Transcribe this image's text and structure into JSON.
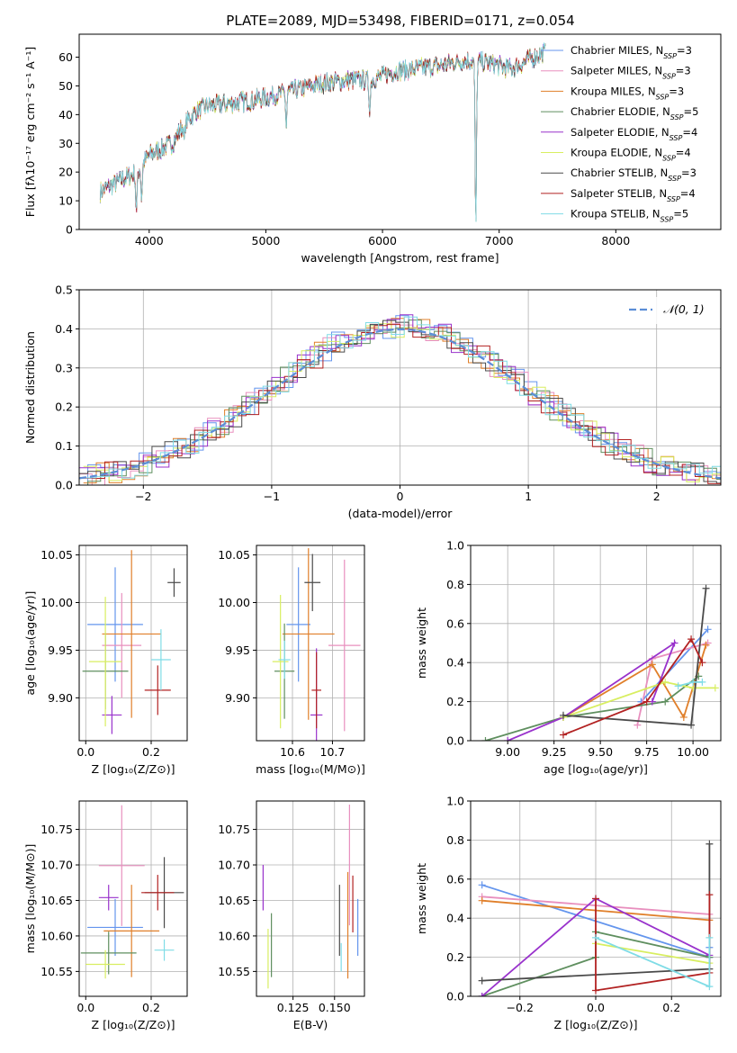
{
  "figure_title": "PLATE=2089, MJD=53498, FIBERID=0171, z=0.054",
  "models": [
    {
      "name": "Chabrier MILES",
      "nssp": "3",
      "color": "#6495ED"
    },
    {
      "name": "Salpeter MILES",
      "nssp": "3",
      "color": "#E88FBE"
    },
    {
      "name": "Kroupa MILES",
      "nssp": "3",
      "color": "#E07F2A"
    },
    {
      "name": "Chabrier ELODIE",
      "nssp": "5",
      "color": "#5F8F5F"
    },
    {
      "name": "Salpeter ELODIE",
      "nssp": "4",
      "color": "#9932CC"
    },
    {
      "name": "Kroupa ELODIE",
      "nssp": "4",
      "color": "#D8EE60"
    },
    {
      "name": "Chabrier STELIB",
      "nssp": "3",
      "color": "#4A4A4A"
    },
    {
      "name": "Salpeter STELIB",
      "nssp": "4",
      "color": "#B22222"
    },
    {
      "name": "Kroupa STELIB",
      "nssp": "5",
      "color": "#7FDCE6"
    }
  ],
  "chart_data": [
    {
      "type": "line",
      "id": "spectrum",
      "xlabel": "wavelength [Angstrom, rest frame]",
      "ylabel": "Flux [fλ10⁻¹⁷ erg cm⁻² s⁻¹ A⁻¹]",
      "xlim": [
        3400,
        8900
      ],
      "ylim": [
        0,
        68
      ],
      "xticks": [
        4000,
        5000,
        6000,
        7000,
        8000
      ],
      "yticks": [
        0,
        10,
        20,
        30,
        40,
        50,
        60
      ],
      "grid": false,
      "legend": "right",
      "continuum": {
        "x": [
          3580,
          3700,
          3800,
          3900,
          4000,
          4100,
          4200,
          4300,
          4400,
          4500,
          4700,
          4900,
          5100,
          5300,
          5500,
          5700,
          5900,
          6100,
          6300,
          6500,
          6600,
          6700,
          6900,
          7100,
          7200,
          7300,
          7400
        ],
        "y": [
          13,
          16,
          18,
          20,
          26,
          28,
          30,
          37,
          41,
          43,
          44,
          45,
          47,
          49,
          51,
          52,
          52,
          55,
          56,
          57,
          58,
          59,
          58,
          56,
          58,
          60,
          62
        ]
      },
      "dips": [
        {
          "x": 3890,
          "y": 6
        },
        {
          "x": 3935,
          "y": 10
        },
        {
          "x": 4300,
          "y": 32
        },
        {
          "x": 5175,
          "y": 36
        },
        {
          "x": 5890,
          "y": 40
        },
        {
          "x": 6800,
          "y": 0
        }
      ]
    },
    {
      "type": "histogram",
      "id": "residuals",
      "xlabel": "(data-model)/error",
      "ylabel": "Normed distribution",
      "xlim": [
        -2.5,
        2.5
      ],
      "ylim": [
        0,
        0.5
      ],
      "xticks": [
        -2,
        -1,
        0,
        1,
        2
      ],
      "yticks": [
        0,
        0.1,
        0.2,
        0.3,
        0.4,
        0.5
      ],
      "grid": true,
      "legend": "top-right",
      "reference_curve": "𝒩(0, 1)",
      "bin_width": 0.1
    },
    {
      "type": "errorbar",
      "id": "z-vs-age",
      "xlabel": "Z [log₁₀(Z/Z⊙)]",
      "ylabel": "age  [log₁₀(age/yr)]",
      "xlim": [
        -0.02,
        0.31
      ],
      "ylim": [
        9.855,
        10.06
      ],
      "xticks": [
        0.0,
        0.2
      ],
      "yticks": [
        9.9,
        9.95,
        10.0,
        10.05
      ],
      "grid": true,
      "points": [
        {
          "x": 0.09,
          "xerr": 0.085,
          "y": 9.977,
          "yerr": 0.06
        },
        {
          "x": 0.11,
          "xerr": 0.06,
          "y": 9.955,
          "yerr": 0.055
        },
        {
          "x": 0.14,
          "xerr": 0.09,
          "y": 9.967,
          "yerr": 0.088
        },
        {
          "x": 0.06,
          "xerr": 0.07,
          "y": 9.928,
          "yerr": 0.04
        },
        {
          "x": 0.08,
          "xerr": 0.03,
          "y": 9.882,
          "yerr": 0.02
        },
        {
          "x": 0.06,
          "xerr": 0.05,
          "y": 9.938,
          "yerr": 0.068
        },
        {
          "x": 0.27,
          "xerr": 0.02,
          "y": 10.021,
          "yerr": 0.015
        },
        {
          "x": 0.22,
          "xerr": 0.04,
          "y": 9.908,
          "yerr": 0.026
        },
        {
          "x": 0.23,
          "xerr": 0.03,
          "y": 9.94,
          "yerr": 0.032
        }
      ]
    },
    {
      "type": "errorbar",
      "id": "mass-vs-age",
      "xlabel": "mass [log₁₀(M/M⊙)]",
      "ylabel": "",
      "xlim": [
        10.51,
        10.78
      ],
      "ylim": [
        9.855,
        10.06
      ],
      "xticks": [
        10.6,
        10.7
      ],
      "yticks": [
        9.9,
        9.95,
        10.0,
        10.05
      ],
      "grid": true,
      "points": [
        {
          "x": 10.615,
          "xerr": 0.03,
          "y": 9.977,
          "yerr": 0.06
        },
        {
          "x": 10.73,
          "xerr": 0.04,
          "y": 9.955,
          "yerr": 0.09
        },
        {
          "x": 10.64,
          "xerr": 0.065,
          "y": 9.967,
          "yerr": 0.09
        },
        {
          "x": 10.58,
          "xerr": 0.025,
          "y": 9.928,
          "yerr": 0.05
        },
        {
          "x": 10.66,
          "xerr": 0.015,
          "y": 9.882,
          "yerr": 0.07
        },
        {
          "x": 10.57,
          "xerr": 0.02,
          "y": 9.938,
          "yerr": 0.07
        },
        {
          "x": 10.65,
          "xerr": 0.02,
          "y": 10.021,
          "yerr": 0.03
        },
        {
          "x": 10.66,
          "xerr": 0.012,
          "y": 9.908,
          "yerr": 0.04
        },
        {
          "x": 10.58,
          "xerr": 0.015,
          "y": 9.94,
          "yerr": 0.02
        }
      ]
    },
    {
      "type": "line",
      "id": "age-vs-weight",
      "xlabel": "age  [log₁₀(age/yr)]",
      "ylabel": "mass weight",
      "xlim": [
        8.8,
        10.15
      ],
      "ylim": [
        0,
        1.0
      ],
      "xticks": [
        9.0,
        9.25,
        9.5,
        9.75,
        10.0
      ],
      "yticks": [
        0.0,
        0.2,
        0.4,
        0.6,
        0.8,
        1.0
      ],
      "grid": true,
      "series": [
        {
          "x": [
            9.72,
            10.08,
            9.72
          ],
          "y": [
            0.2,
            0.57,
            0.2
          ]
        },
        {
          "x": [
            9.7,
            9.78,
            10.08
          ],
          "y": [
            0.08,
            0.42,
            0.5
          ]
        },
        {
          "x": [
            9.3,
            9.78,
            9.95,
            10.07
          ],
          "y": [
            0.12,
            0.39,
            0.12,
            0.49
          ]
        },
        {
          "x": [
            8.88,
            9.3,
            9.85,
            10.03
          ],
          "y": [
            0.0,
            0.12,
            0.2,
            0.33
          ]
        },
        {
          "x": [
            9.0,
            9.3,
            9.9,
            9.78
          ],
          "y": [
            0.0,
            0.12,
            0.5,
            0.2
          ]
        },
        {
          "x": [
            9.3,
            9.85,
            10.0,
            10.12
          ],
          "y": [
            0.12,
            0.3,
            0.27,
            0.27
          ]
        },
        {
          "x": [
            9.3,
            9.99,
            10.07
          ],
          "y": [
            0.13,
            0.08,
            0.78
          ]
        },
        {
          "x": [
            9.3,
            9.75,
            9.99,
            10.05
          ],
          "y": [
            0.03,
            0.2,
            0.52,
            0.4
          ]
        },
        {
          "x": [
            9.92,
            10.0,
            10.05
          ],
          "y": [
            0.28,
            0.3,
            0.3
          ]
        }
      ]
    },
    {
      "type": "errorbar",
      "id": "z-vs-mass",
      "xlabel": "Z [log₁₀(Z/Z⊙)]",
      "ylabel": "mass [log₁₀(M/M⊙)]",
      "xlim": [
        -0.02,
        0.31
      ],
      "ylim": [
        10.515,
        10.79
      ],
      "xticks": [
        0.0,
        0.2
      ],
      "yticks": [
        10.55,
        10.6,
        10.65,
        10.7,
        10.75
      ],
      "grid": true,
      "points": [
        {
          "x": 0.09,
          "xerr": 0.085,
          "y": 10.612,
          "yerr": 0.04
        },
        {
          "x": 0.11,
          "xerr": 0.07,
          "y": 10.699,
          "yerr": 0.085
        },
        {
          "x": 0.14,
          "xerr": 0.085,
          "y": 10.607,
          "yerr": 0.065
        },
        {
          "x": 0.07,
          "xerr": 0.085,
          "y": 10.576,
          "yerr": 0.03
        },
        {
          "x": 0.07,
          "xerr": 0.03,
          "y": 10.654,
          "yerr": 0.018
        },
        {
          "x": 0.06,
          "xerr": 0.06,
          "y": 10.56,
          "yerr": 0.02
        },
        {
          "x": 0.24,
          "xerr": 0.06,
          "y": 10.661,
          "yerr": 0.05
        },
        {
          "x": 0.22,
          "xerr": 0.05,
          "y": 10.661,
          "yerr": 0.025
        },
        {
          "x": 0.24,
          "xerr": 0.03,
          "y": 10.58,
          "yerr": 0.015
        }
      ]
    },
    {
      "type": "errorbar",
      "id": "ebv-vs-mass",
      "xlabel": "E(B-V)",
      "ylabel": "",
      "xlim": [
        0.103,
        0.168
      ],
      "ylim": [
        10.515,
        10.79
      ],
      "xticks": [
        0.125,
        0.15
      ],
      "yticks": [
        10.55,
        10.6,
        10.65,
        10.7,
        10.75
      ],
      "grid": true,
      "points": [
        {
          "x": 0.164,
          "xerr": 0.0,
          "y": 10.612,
          "yerr": 0.04
        },
        {
          "x": 0.159,
          "xerr": 0.0,
          "y": 10.7,
          "yerr": 0.085
        },
        {
          "x": 0.158,
          "xerr": 0.0,
          "y": 10.615,
          "yerr": 0.075
        },
        {
          "x": 0.112,
          "xerr": 0.0,
          "y": 10.587,
          "yerr": 0.045
        },
        {
          "x": 0.107,
          "xerr": 0.0,
          "y": 10.668,
          "yerr": 0.032
        },
        {
          "x": 0.11,
          "xerr": 0.0,
          "y": 10.568,
          "yerr": 0.042
        },
        {
          "x": 0.153,
          "xerr": 0.0,
          "y": 10.622,
          "yerr": 0.05
        },
        {
          "x": 0.161,
          "xerr": 0.0,
          "y": 10.645,
          "yerr": 0.04
        },
        {
          "x": 0.154,
          "xerr": 0.0,
          "y": 10.57,
          "yerr": 0.02
        }
      ]
    },
    {
      "type": "line",
      "id": "z-vs-weight",
      "xlabel": "Z [log₁₀(Z/Z⊙)]",
      "ylabel": "mass weight",
      "xlim": [
        -0.33,
        0.33
      ],
      "ylim": [
        0,
        1.0
      ],
      "xticks": [
        -0.2,
        0.0,
        0.2
      ],
      "yticks": [
        0.0,
        0.2,
        0.4,
        0.6,
        0.8,
        1.0
      ],
      "grid": true,
      "series": [
        {
          "x": [
            -0.3,
            0.3,
            0.3
          ],
          "y": [
            0.57,
            0.2,
            0.25
          ]
        },
        {
          "x": [
            -0.3,
            0.3
          ],
          "y": [
            0.51,
            0.42
          ]
        },
        {
          "x": [
            -0.3,
            0.3
          ],
          "y": [
            0.49,
            0.39
          ]
        },
        {
          "x": [
            -0.3,
            0.0,
            0.0,
            0.3
          ],
          "y": [
            0.0,
            0.2,
            0.33,
            0.2
          ]
        },
        {
          "x": [
            -0.3,
            0.0,
            0.3
          ],
          "y": [
            0.0,
            0.5,
            0.21
          ]
        },
        {
          "x": [
            0.0,
            0.3
          ],
          "y": [
            0.27,
            0.17
          ]
        },
        {
          "x": [
            -0.3,
            0.3,
            0.3
          ],
          "y": [
            0.08,
            0.14,
            0.78
          ]
        },
        {
          "x": [
            0.0,
            0.0,
            0.3,
            0.3
          ],
          "y": [
            0.5,
            0.03,
            0.12,
            0.52
          ]
        },
        {
          "x": [
            0.0,
            0.3,
            0.3
          ],
          "y": [
            0.3,
            0.05,
            0.3
          ]
        }
      ]
    }
  ]
}
